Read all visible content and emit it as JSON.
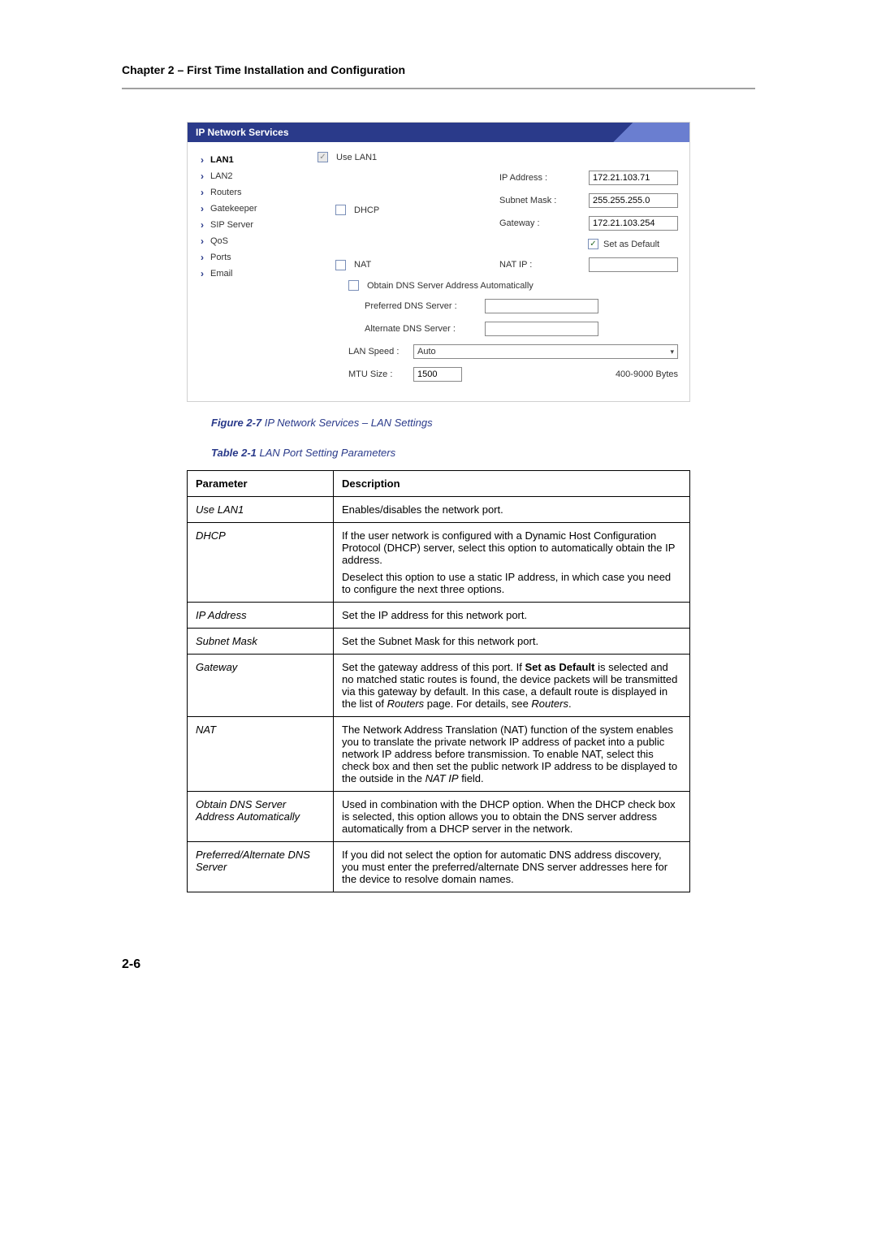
{
  "chapter_header": "Chapter 2 – First Time Installation and Configuration",
  "ui": {
    "title": "IP Network Services",
    "sidebar": [
      {
        "label": "LAN1",
        "selected": true
      },
      {
        "label": "LAN2",
        "selected": false
      },
      {
        "label": "Routers",
        "selected": false
      },
      {
        "label": "Gatekeeper",
        "selected": false
      },
      {
        "label": "SIP Server",
        "selected": false
      },
      {
        "label": "QoS",
        "selected": false
      },
      {
        "label": "Ports",
        "selected": false
      },
      {
        "label": "Email",
        "selected": false
      }
    ],
    "form": {
      "use_lan1_label": "Use LAN1",
      "use_lan1_checked": true,
      "dhcp_label": "DHCP",
      "dhcp_checked": false,
      "ip_address_label": "IP Address :",
      "ip_address_value": "172.21.103.71",
      "subnet_mask_label": "Subnet Mask :",
      "subnet_mask_value": "255.255.255.0",
      "gateway_label": "Gateway :",
      "gateway_value": "172.21.103.254",
      "set_as_default_label": "Set as Default",
      "set_as_default_checked": true,
      "nat_label": "NAT",
      "nat_checked": false,
      "nat_ip_label": "NAT IP :",
      "nat_ip_value": "",
      "obtain_dns_label": "Obtain DNS Server Address Automatically",
      "obtain_dns_checked": false,
      "preferred_dns_label": "Preferred DNS Server :",
      "preferred_dns_value": "",
      "alternate_dns_label": "Alternate DNS Server :",
      "alternate_dns_value": "",
      "lan_speed_label": "LAN Speed :",
      "lan_speed_value": "Auto",
      "mtu_size_label": "MTU Size :",
      "mtu_size_value": "1500",
      "mtu_hint": "400-9000 Bytes"
    }
  },
  "figure_caption_lead": "Figure 2-7",
  "figure_caption_rest": " IP Network Services – LAN Settings",
  "table_caption_lead": "Table 2-1",
  "table_caption_rest": " LAN Port Setting Parameters",
  "param_table": {
    "head_param": "Parameter",
    "head_desc": "Description",
    "rows": [
      {
        "param": "Use LAN1",
        "desc": [
          "Enables/disables the network port."
        ]
      },
      {
        "param": "DHCP",
        "desc": [
          "If the user network is configured with a Dynamic Host Configuration Protocol (DHCP) server, select this option to automatically obtain the IP address.",
          "Deselect this option to use a static IP address, in which case you need to configure the next three options."
        ]
      },
      {
        "param": "IP Address",
        "desc": [
          "Set the IP address for this network port."
        ]
      },
      {
        "param": "Subnet Mask",
        "desc": [
          "Set the Subnet Mask for this network port."
        ]
      },
      {
        "param": "Gateway",
        "desc_html": "Set the gateway address of this port. If <b>Set as Default</b> is selected and no matched static routes is found, the device packets will be transmitted via this gateway by default. In this case, a default route is displayed in the list of <i>Routers</i> page. For details, see <i>Routers</i>."
      },
      {
        "param": "NAT",
        "desc_html": "The Network Address Translation (NAT) function of the system enables you to translate the private network IP address of packet into a public network IP address before transmission. To enable NAT, select this check box and then set the public network IP address to be displayed to the outside in the <i>NAT IP</i> field."
      },
      {
        "param": "Obtain DNS Server Address Automatically",
        "desc": [
          "Used in combination with the DHCP option. When the DHCP check box is selected, this option allows you to obtain the DNS server address automatically from a DHCP server in the network."
        ]
      },
      {
        "param": "Preferred/Alternate DNS Server",
        "desc": [
          "If you did not select the option for automatic DNS address discovery, you must enter the preferred/alternate DNS server addresses here for the device to resolve domain names."
        ]
      }
    ]
  },
  "page_number": "2-6"
}
